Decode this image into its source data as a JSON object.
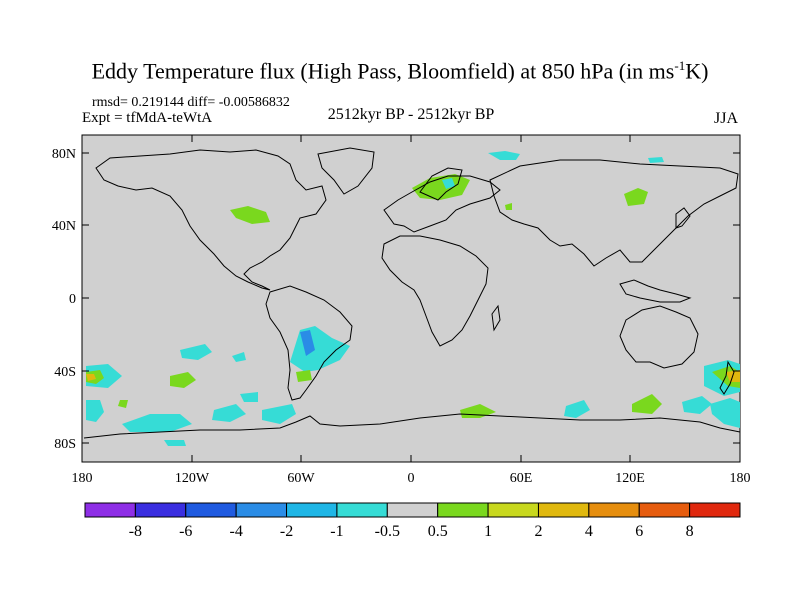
{
  "title": {
    "main": "Eddy Temperature flux (High Pass, Bloomfield) at 850 hPa (in ms",
    "sup": "-1",
    "end": "K)"
  },
  "stats": {
    "rmsd_diff": "rmsd= 0.219144 diff= -0.00586832"
  },
  "experiment": "Expt = tfMdA-teWtA",
  "period": "2512kyr BP - 2512kyr BP",
  "season": "JJA",
  "map": {
    "lat_ticks": [
      "80N",
      "40N",
      "0",
      "40S",
      "80S"
    ],
    "lon_ticks": [
      "180",
      "120W",
      "60W",
      "0",
      "60E",
      "120E",
      "180"
    ]
  },
  "legend": {
    "colors": [
      "#8e2ee6",
      "#3a2ee0",
      "#1f5ae0",
      "#2a8ce6",
      "#1fb6e6",
      "#36dcd6",
      "#d0d0d0",
      "#7ad81e",
      "#c8d81e",
      "#e0b80e",
      "#e68e0e",
      "#e65c0e",
      "#e0280e"
    ],
    "labels": [
      "-8",
      "-6",
      "-4",
      "-2",
      "-1",
      "-0.5",
      "0.5",
      "1",
      "2",
      "4",
      "6",
      "8"
    ]
  }
}
